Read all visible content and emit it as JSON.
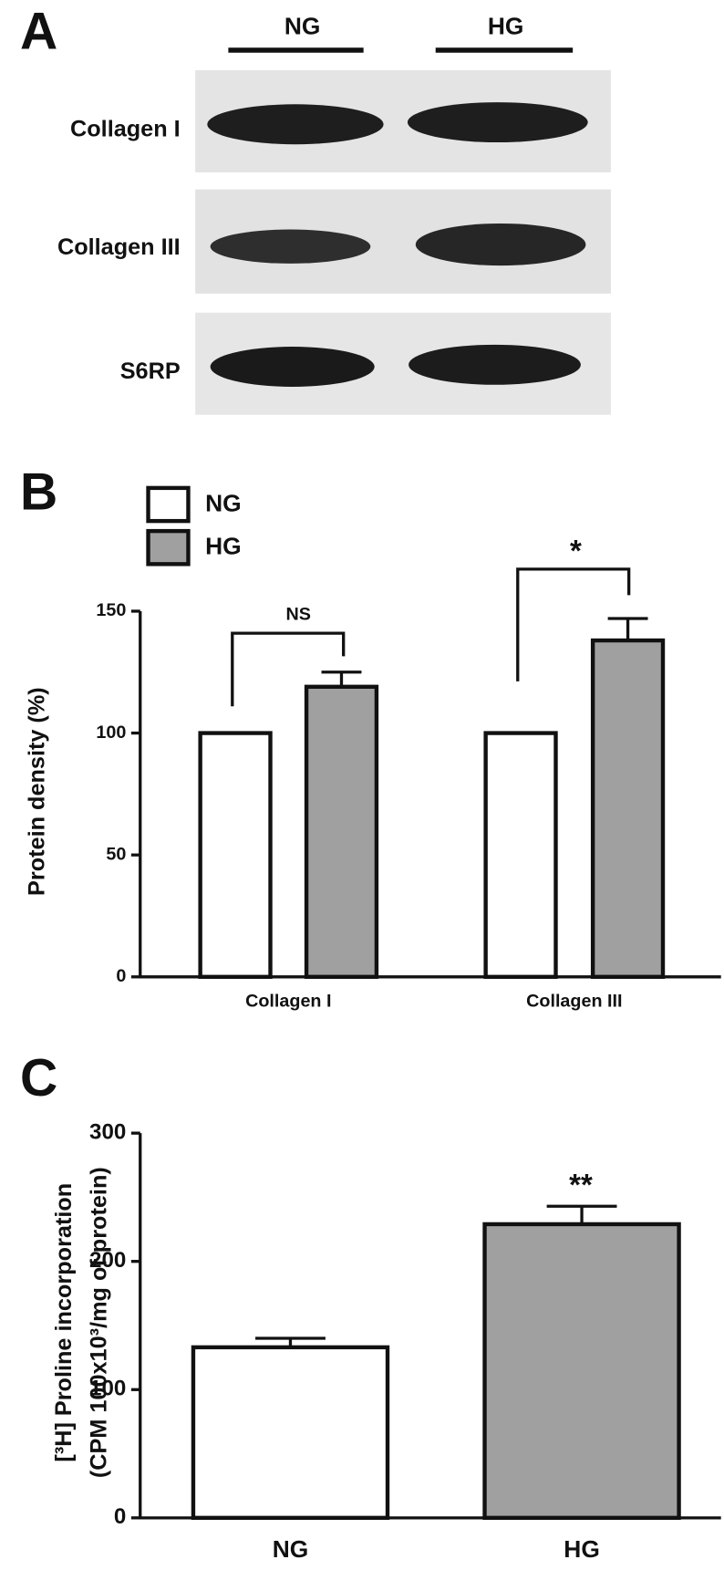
{
  "blot": {
    "panel_label": "A",
    "lanes": [
      "NG",
      "HG"
    ],
    "rows": [
      "Collagen I",
      "Collagen III",
      "S6RP"
    ]
  },
  "chart_data": [
    {
      "type": "bar",
      "panel_label": "B",
      "ylabel": "Protein density (%)",
      "categories": [
        "Collagen I",
        "Collagen III"
      ],
      "series": [
        {
          "name": "NG",
          "color": "#ffffff",
          "values": [
            100,
            100
          ]
        },
        {
          "name": "HG",
          "color": "#a0a0a0",
          "values": [
            119,
            138
          ],
          "errors": [
            6,
            9
          ]
        }
      ],
      "ylim": [
        0,
        150
      ],
      "yticks": [
        0,
        50,
        100,
        150
      ],
      "annotations": [
        "NS",
        "*"
      ]
    },
    {
      "type": "bar",
      "panel_label": "C",
      "ylabel": [
        "[³H] Proline incorporation",
        "(CPM 100x10³/mg of protein)"
      ],
      "categories": [
        "NG",
        "HG"
      ],
      "values": [
        133,
        229
      ],
      "errors": [
        7,
        14
      ],
      "colors": [
        "#ffffff",
        "#a0a0a0"
      ],
      "ylim": [
        0,
        300
      ],
      "yticks": [
        0,
        100,
        200,
        300
      ],
      "annotations": [
        "**"
      ]
    }
  ]
}
